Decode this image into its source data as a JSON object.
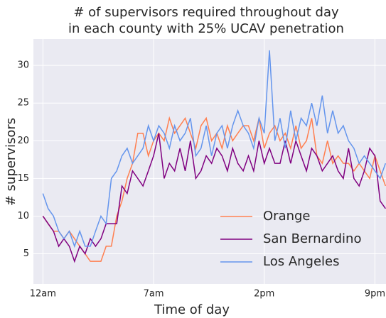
{
  "chart_data": {
    "type": "line",
    "title": [
      "# of supervisors required throughout day",
      "in each county with 25% UCAV penetration"
    ],
    "xlabel": "Time of day",
    "ylabel": "# supervisors",
    "x": [
      0,
      0.33,
      0.67,
      1,
      1.33,
      1.67,
      2,
      2.33,
      2.67,
      3,
      3.33,
      3.67,
      4,
      4.33,
      4.67,
      5,
      5.33,
      5.67,
      6,
      6.33,
      6.67,
      7,
      7.33,
      7.67,
      8,
      8.33,
      8.67,
      9,
      9.33,
      9.67,
      10,
      10.33,
      10.67,
      11,
      11.33,
      11.67,
      12,
      12.33,
      12.67,
      13,
      13.33,
      13.67,
      14,
      14.33,
      14.67,
      15,
      15.33,
      15.67,
      16,
      16.33,
      16.67,
      17,
      17.33,
      17.67,
      18,
      18.33,
      18.67,
      19,
      19.33,
      19.67,
      20,
      20.33,
      20.67,
      21,
      21.33,
      21.67
    ],
    "series": [
      {
        "name": "Orange",
        "color": "#ff7f50",
        "values": [
          10,
          9,
          8,
          8,
          7,
          8,
          7,
          6,
          5,
          4,
          4,
          4,
          6,
          6,
          10,
          12,
          15,
          17,
          21,
          21,
          18,
          20,
          21,
          20,
          23,
          21,
          22,
          23,
          21,
          19,
          22,
          23,
          20,
          21,
          19,
          22,
          20,
          21,
          22,
          22,
          20,
          23,
          19,
          21,
          22,
          20,
          21,
          19,
          22,
          19,
          20,
          23,
          18,
          17,
          20,
          17,
          18,
          17,
          17,
          16,
          17,
          16,
          15,
          18,
          16,
          14
        ]
      },
      {
        "name": "San Bernardino",
        "color": "#800080",
        "values": [
          10,
          9,
          8,
          6,
          7,
          6,
          4,
          6,
          5,
          7,
          6,
          7,
          9,
          9,
          9,
          14,
          13,
          16,
          15,
          14,
          16,
          18,
          21,
          15,
          17,
          16,
          19,
          16,
          20,
          15,
          16,
          18,
          17,
          19,
          18,
          16,
          19,
          17,
          16,
          18,
          16,
          20,
          17,
          19,
          17,
          17,
          20,
          17,
          20,
          18,
          16,
          19,
          18,
          16,
          17,
          18,
          16,
          15,
          19,
          15,
          14,
          16,
          19,
          18,
          12,
          11
        ]
      },
      {
        "name": "Los Angeles",
        "color": "#6495ed",
        "values": [
          13,
          11,
          10,
          8,
          7,
          8,
          6,
          8,
          6,
          6,
          8,
          10,
          9,
          15,
          16,
          18,
          19,
          17,
          18,
          19,
          22,
          20,
          22,
          21,
          19,
          22,
          20,
          21,
          23,
          18,
          19,
          22,
          18,
          21,
          22,
          19,
          22,
          24,
          22,
          21,
          19,
          23,
          21,
          32,
          20,
          23,
          19,
          24,
          20,
          23,
          22,
          25,
          22,
          26,
          21,
          24,
          21,
          22,
          20,
          19,
          17,
          18,
          17,
          16,
          15,
          17
        ]
      }
    ],
    "xlim": [
      -0.6,
      21.7
    ],
    "xticks": [
      {
        "value": 0,
        "label": "12am"
      },
      {
        "value": 7,
        "label": "7am"
      },
      {
        "value": 14,
        "label": "2pm"
      },
      {
        "value": 21,
        "label": "9pm"
      }
    ],
    "ylim": [
      1,
      33.5
    ],
    "yticks": [
      5,
      10,
      15,
      20,
      25,
      30
    ],
    "grid": true,
    "legend": "lower right"
  }
}
